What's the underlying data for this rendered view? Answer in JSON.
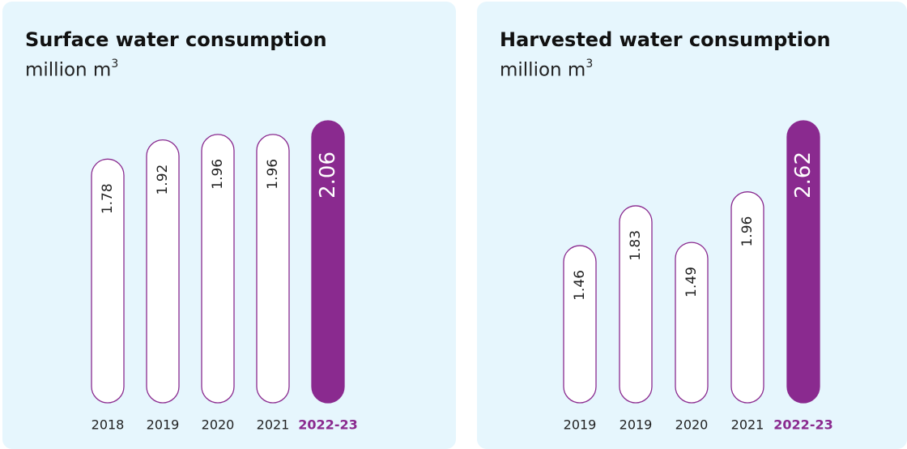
{
  "colors": {
    "panel_bg": "#e6f6fd",
    "accent": "#8a2a8f",
    "bar_fill": "#ffffff",
    "text": "#222222"
  },
  "chart_data": [
    {
      "type": "bar",
      "title": "Surface water consumption",
      "unit_main": "million m",
      "unit_sup": "3",
      "categories": [
        "2018",
        "2019",
        "2020",
        "2021",
        "2022-23"
      ],
      "values": [
        1.78,
        1.92,
        1.96,
        1.96,
        2.06
      ],
      "value_labels": [
        "1.78",
        "1.92",
        "1.96",
        "1.96",
        "2.06"
      ],
      "highlight_index": 4,
      "ylim": [
        0,
        2.06
      ],
      "grid": false
    },
    {
      "type": "bar",
      "title": "Harvested water consumption",
      "unit_main": "million m",
      "unit_sup": "3",
      "categories": [
        "2019",
        "2019",
        "2020",
        "2021",
        "2022-23"
      ],
      "values": [
        1.46,
        1.83,
        1.49,
        1.96,
        2.62
      ],
      "value_labels": [
        "1.46",
        "1.83",
        "1.49",
        "1.96",
        "2.62"
      ],
      "highlight_index": 4,
      "ylim": [
        0,
        2.62
      ],
      "grid": false
    }
  ]
}
